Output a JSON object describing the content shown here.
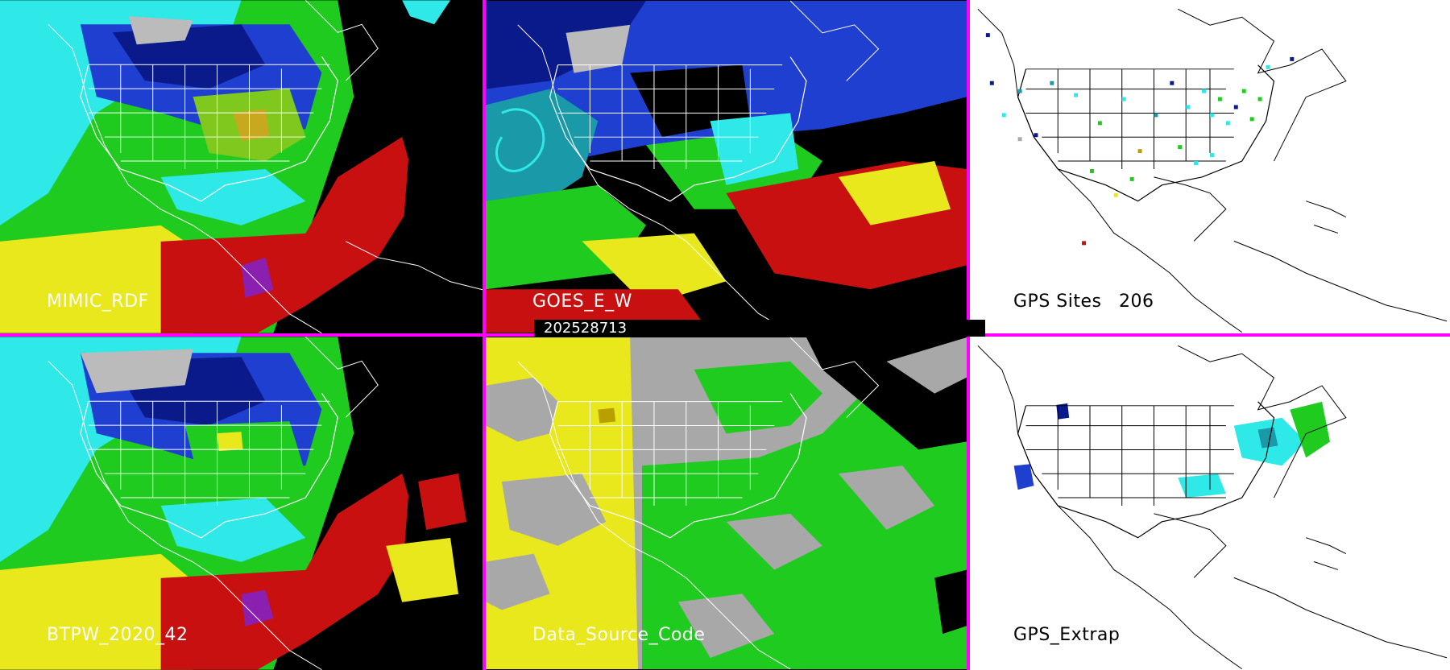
{
  "panels": {
    "mimic": {
      "label": "MIMIC_RDF"
    },
    "goes": {
      "label": "GOES_E_W"
    },
    "gps_sites": {
      "label": "GPS Sites",
      "count": "206"
    },
    "btpw": {
      "label": "BTPW_2020_42"
    },
    "data_source": {
      "label": "Data_Source_Code"
    },
    "gps_extrap": {
      "label": "GPS_Extrap"
    }
  },
  "timestamp": "202528713",
  "colors": {
    "divider": "#ff00ff",
    "black": "#000000",
    "gray": "#a8a8a8",
    "navy": "#0b1a8a",
    "blue": "#1f3fd0",
    "cyan": "#2fe8e8",
    "teal": "#1a9aa8",
    "green": "#1ecb1e",
    "yellow": "#e8e81c",
    "olive": "#b8a000",
    "red": "#c81010",
    "purple": "#8a1fb0",
    "white": "#ffffff"
  },
  "icons": {
    "map_outline": "north-america-outline-icon"
  }
}
